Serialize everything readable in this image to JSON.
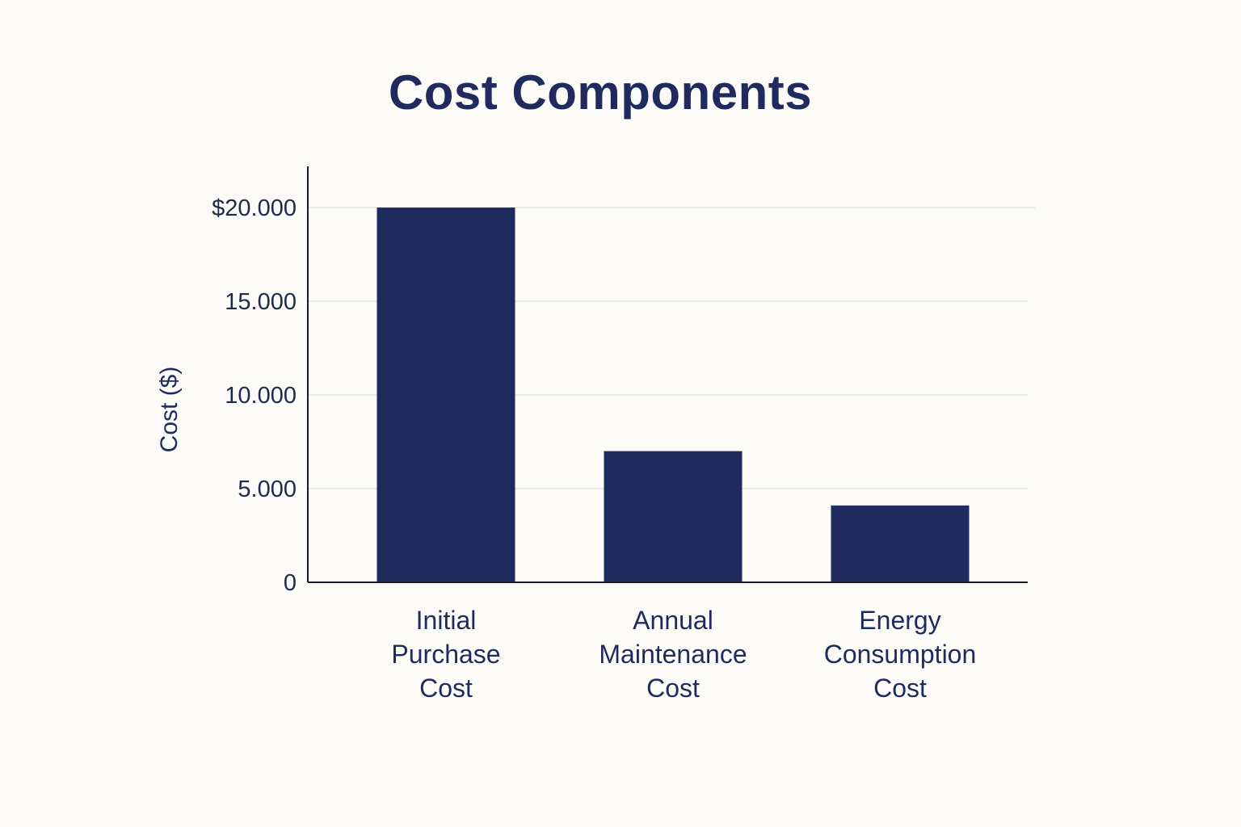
{
  "chart_data": {
    "type": "bar",
    "title": "Cost Components",
    "xlabel": "",
    "ylabel": "Cost ($)",
    "categories": [
      [
        "Initial",
        "Purchase",
        "Cost"
      ],
      [
        "Annual",
        "Maintenance",
        "Cost"
      ],
      [
        "Energy",
        "Consumption",
        "Cost"
      ]
    ],
    "values": [
      20000,
      7000,
      4100
    ],
    "ylim": [
      0,
      22000
    ],
    "yticks": [
      0,
      5000,
      10000,
      15000,
      20000
    ],
    "ytick_labels": [
      "0",
      "5.000",
      "10.000",
      "15.000",
      "$20.000"
    ],
    "grid": true,
    "legend": "none",
    "colors": {
      "bar": "#1f2a5e",
      "grid": "#e2e4e8",
      "axis": "#1a1a2a",
      "background": "#fcfbf8"
    }
  }
}
